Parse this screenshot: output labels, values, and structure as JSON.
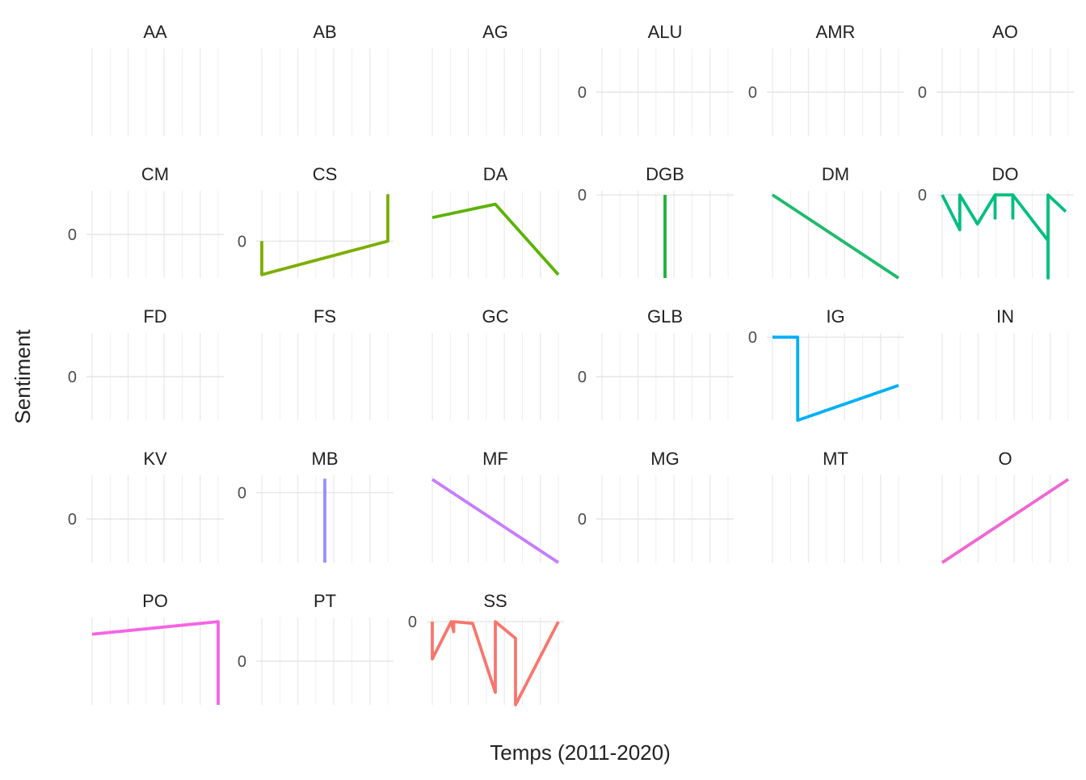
{
  "chart_data": {
    "type": "line",
    "facet_layout": "wrap",
    "xlabel": "Temps (2011-2020)",
    "ylabel": "Sentiment",
    "grid": "major-and-minor",
    "legend": "none",
    "panels": [
      {
        "label": "AA",
        "ylim": null,
        "y_ticks": [],
        "series": []
      },
      {
        "label": "AB",
        "ylim": null,
        "y_ticks": [],
        "series": []
      },
      {
        "label": "AG",
        "ylim": null,
        "y_ticks": [],
        "series": []
      },
      {
        "label": "ALU",
        "ylim": [
          -1,
          1
        ],
        "y_ticks": [
          0
        ],
        "series": []
      },
      {
        "label": "AMR",
        "ylim": [
          -1,
          1
        ],
        "y_ticks": [
          0
        ],
        "series": []
      },
      {
        "label": "AO",
        "ylim": [
          -1,
          1
        ],
        "y_ticks": [
          0
        ],
        "series": []
      },
      {
        "label": "CM",
        "ylim": [
          -1,
          1
        ],
        "y_ticks": [
          0
        ],
        "series": []
      },
      {
        "label": "CS",
        "ylim": [
          -0.55,
          0.75
        ],
        "y_ticks": [
          0
        ],
        "series": [
          {
            "color": "#7CAE00",
            "points": [
              [
                0,
                0
              ],
              [
                0,
                -0.5
              ],
              [
                1,
                0
              ],
              [
                1,
                0.7
              ]
            ]
          }
        ]
      },
      {
        "label": "DA",
        "ylim": [
          -1.1,
          0.2
        ],
        "y_ticks": [],
        "series": [
          {
            "color": "#5BB300",
            "points": [
              [
                0,
                -0.2
              ],
              [
                0.5,
                0
              ],
              [
                1,
                -1.05
              ]
            ]
          }
        ]
      },
      {
        "label": "DGB",
        "ylim": [
          -1,
          0.05
        ],
        "y_ticks": [
          0
        ],
        "series": [
          {
            "color": "#1DB13A",
            "points": [
              [
                0.5,
                0
              ],
              [
                0.5,
                -1
              ]
            ]
          }
        ]
      },
      {
        "label": "DM",
        "ylim": [
          -1,
          0.05
        ],
        "y_ticks": [],
        "series": [
          {
            "color": "#1FBA6C",
            "points": [
              [
                0,
                0
              ],
              [
                1,
                -1
              ]
            ]
          }
        ]
      },
      {
        "label": "DO",
        "ylim": [
          -1,
          0.05
        ],
        "y_ticks": [
          0
        ],
        "series": [
          {
            "color": "#00BF7D",
            "points": [
              [
                0,
                0
              ],
              [
                0.14,
                -0.42
              ],
              [
                0.14,
                0
              ],
              [
                0.28,
                -0.35
              ],
              [
                0.42,
                0
              ],
              [
                0.42,
                -0.28
              ],
              [
                0.42,
                0
              ],
              [
                0.56,
                0
              ],
              [
                0.56,
                -0.28
              ],
              [
                0.56,
                0
              ],
              [
                0.84,
                -0.55
              ],
              [
                0.84,
                -1
              ],
              [
                0.84,
                0
              ],
              [
                0.98,
                -0.2
              ]
            ]
          }
        ]
      },
      {
        "label": "FD",
        "ylim": [
          -1,
          1
        ],
        "y_ticks": [
          0
        ],
        "series": []
      },
      {
        "label": "FS",
        "ylim": null,
        "y_ticks": [],
        "series": []
      },
      {
        "label": "GC",
        "ylim": null,
        "y_ticks": [],
        "series": []
      },
      {
        "label": "GLB",
        "ylim": [
          -1,
          1
        ],
        "y_ticks": [
          0
        ],
        "series": []
      },
      {
        "label": "IG",
        "ylim": [
          -1,
          0.05
        ],
        "y_ticks": [
          0
        ],
        "series": [
          {
            "color": "#00B0F6",
            "points": [
              [
                0,
                0
              ],
              [
                0.2,
                0
              ],
              [
                0.2,
                -1
              ],
              [
                1,
                -0.58
              ]
            ]
          }
        ]
      },
      {
        "label": "IN",
        "ylim": null,
        "y_ticks": [],
        "series": []
      },
      {
        "label": "KV",
        "ylim": [
          -1,
          1
        ],
        "y_ticks": [
          0
        ],
        "series": []
      },
      {
        "label": "MB",
        "ylim": [
          -1,
          0.25
        ],
        "y_ticks": [
          0
        ],
        "series": [
          {
            "color": "#9590FF",
            "points": [
              [
                0.5,
                0.2
              ],
              [
                0.5,
                -1
              ]
            ]
          }
        ]
      },
      {
        "label": "MF",
        "ylim": [
          -1,
          0.05
        ],
        "y_ticks": [],
        "series": [
          {
            "color": "#C77CFF",
            "points": [
              [
                0,
                0
              ],
              [
                1,
                -1
              ]
            ]
          }
        ]
      },
      {
        "label": "MG",
        "ylim": [
          -1,
          1
        ],
        "y_ticks": [
          0
        ],
        "series": []
      },
      {
        "label": "MT",
        "ylim": null,
        "y_ticks": [],
        "series": []
      },
      {
        "label": "O",
        "ylim": [
          -1,
          0.05
        ],
        "y_ticks": [],
        "series": [
          {
            "color": "#F066D2",
            "points": [
              [
                0,
                -1
              ],
              [
                1,
                0
              ]
            ]
          }
        ]
      },
      {
        "label": "PO",
        "ylim": [
          -1,
          0.05
        ],
        "y_ticks": [],
        "series": [
          {
            "color": "#F564E3",
            "points": [
              [
                0,
                -0.15
              ],
              [
                1,
                0
              ],
              [
                1,
                -1
              ]
            ]
          }
        ]
      },
      {
        "label": "PT",
        "ylim": [
          -1,
          1
        ],
        "y_ticks": [
          0
        ],
        "series": []
      },
      {
        "label": "SS",
        "ylim": [
          -1,
          0.05
        ],
        "y_ticks": [
          0
        ],
        "series": [
          {
            "color": "#F8766D",
            "points": [
              [
                0,
                0
              ],
              [
                0,
                -0.45
              ],
              [
                0.15,
                0
              ],
              [
                0.17,
                -0.12
              ],
              [
                0.17,
                0
              ],
              [
                0.32,
                -0.02
              ],
              [
                0.5,
                -0.85
              ],
              [
                0.5,
                0
              ],
              [
                0.66,
                -0.2
              ],
              [
                0.66,
                -1
              ],
              [
                1,
                0
              ]
            ]
          }
        ]
      }
    ]
  }
}
